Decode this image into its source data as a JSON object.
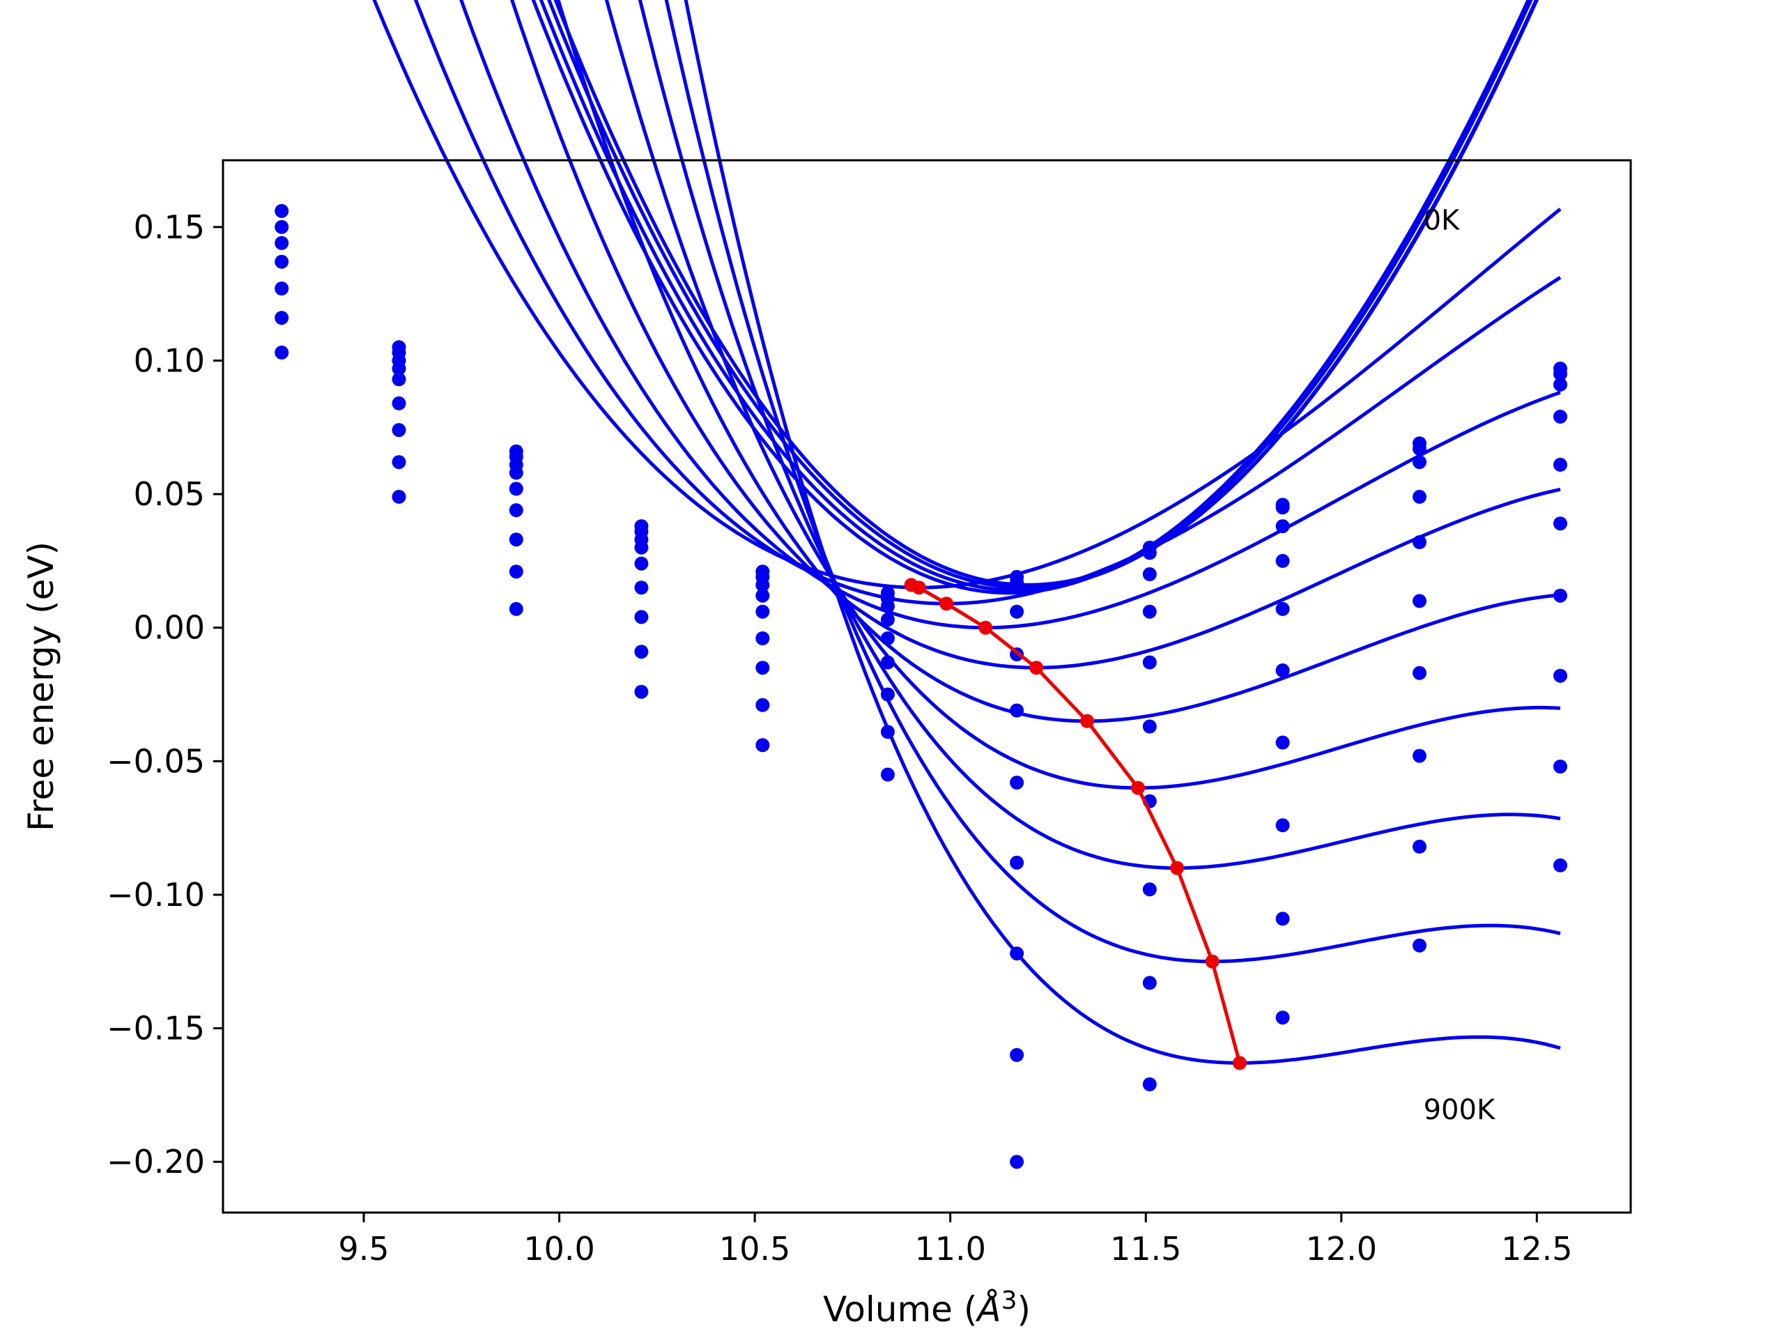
{
  "chart_data": {
    "type": "scatter",
    "title": "",
    "xlabel": "Volume (",
    "xlabel_unit_base": "Å",
    "xlabel_unit_exp": "3",
    "xlabel_close": ")",
    "ylabel": "Free energy (eV)",
    "xlim": [
      9.14,
      12.74
    ],
    "ylim": [
      -0.219,
      0.175
    ],
    "grid": false,
    "x_ticks": [
      {
        "value": 9.5,
        "label": "9.5"
      },
      {
        "value": 10.0,
        "label": "10.0"
      },
      {
        "value": 10.5,
        "label": "10.5"
      },
      {
        "value": 11.0,
        "label": "11.0"
      },
      {
        "value": 11.5,
        "label": "11.5"
      },
      {
        "value": 12.0,
        "label": "12.0"
      },
      {
        "value": 12.5,
        "label": "12.5"
      }
    ],
    "y_ticks": [
      {
        "value": 0.15,
        "label": "0.15"
      },
      {
        "value": 0.1,
        "label": "0.10"
      },
      {
        "value": 0.05,
        "label": "0.05"
      },
      {
        "value": 0.0,
        "label": "0.00"
      },
      {
        "value": -0.05,
        "label": "−0.05"
      },
      {
        "value": -0.1,
        "label": "−0.10"
      },
      {
        "value": -0.15,
        "label": "−0.15"
      },
      {
        "value": -0.2,
        "label": "−0.20"
      }
    ],
    "annotations": [
      {
        "text": "0K",
        "x": 12.21,
        "y": 0.149
      },
      {
        "text": "900K",
        "x": 12.21,
        "y": -0.184
      }
    ],
    "line_color": "#0000ee",
    "min_line_color": "#ee0000",
    "x_samples": [
      9.29,
      9.59,
      9.89,
      10.21,
      10.52,
      10.84,
      11.17,
      11.51,
      11.85,
      12.2,
      12.56
    ],
    "fits": [
      {
        "x_min": 11.2,
        "y_min": 0.016,
        "a": 0.14,
        "b": 0.008,
        "x_start": 9.29,
        "x_end": 12.56
      },
      {
        "x_min": 11.19,
        "y_min": 0.015,
        "a": 0.139,
        "b": 0.008,
        "x_start": 9.29,
        "x_end": 12.56
      },
      {
        "x_min": 11.17,
        "y_min": 0.014,
        "a": 0.139,
        "b": 0.0085,
        "x_start": 9.29,
        "x_end": 12.56
      },
      {
        "x_min": 11.15,
        "y_min": 0.013,
        "a": 0.1385,
        "b": 0.0095,
        "x_start": 9.29,
        "x_end": 12.56
      },
      {
        "x_min": 10.92,
        "y_min": 0.015,
        "a": 0.0855,
        "b": 0.02,
        "x_start": 9.29,
        "x_end": 12.56
      },
      {
        "x_min": 10.99,
        "y_min": 0.009,
        "a": 0.0888,
        "b": 0.025,
        "x_start": 9.29,
        "x_end": 12.56
      },
      {
        "x_min": 11.09,
        "y_min": 0.0,
        "a": 0.0878,
        "b": 0.032,
        "x_start": 9.29,
        "x_end": 12.56
      },
      {
        "x_min": 11.22,
        "y_min": -0.015,
        "a": 0.0881,
        "b": 0.038,
        "x_start": 9.29,
        "x_end": 12.56
      },
      {
        "x_min": 11.35,
        "y_min": -0.035,
        "a": 0.0867,
        "b": 0.045,
        "x_start": 9.29,
        "x_end": 12.56
      },
      {
        "x_min": 11.48,
        "y_min": -0.06,
        "a": 0.085,
        "b": 0.055,
        "x_start": 9.29,
        "x_end": 12.56
      },
      {
        "x_min": 11.58,
        "y_min": -0.09,
        "a": 0.083,
        "b": 0.065,
        "x_start": 9.29,
        "x_end": 12.56
      },
      {
        "x_min": 11.67,
        "y_min": -0.125,
        "a": 0.08,
        "b": 0.075,
        "x_start": 9.29,
        "x_end": 12.56
      },
      {
        "x_min": 11.74,
        "y_min": -0.163,
        "a": 0.078,
        "b": 0.085,
        "x_start": 9.29,
        "x_end": 12.56
      }
    ],
    "points": [
      {
        "x": 9.29,
        "y": 0.156
      },
      {
        "x": 9.29,
        "y": 0.15
      },
      {
        "x": 9.29,
        "y": 0.144
      },
      {
        "x": 9.29,
        "y": 0.137
      },
      {
        "x": 9.29,
        "y": 0.127
      },
      {
        "x": 9.29,
        "y": 0.116
      },
      {
        "x": 9.29,
        "y": 0.103
      },
      {
        "x": 9.59,
        "y": 0.105
      },
      {
        "x": 9.59,
        "y": 0.103
      },
      {
        "x": 9.59,
        "y": 0.1
      },
      {
        "x": 9.59,
        "y": 0.097
      },
      {
        "x": 9.59,
        "y": 0.093
      },
      {
        "x": 9.59,
        "y": 0.084
      },
      {
        "x": 9.59,
        "y": 0.074
      },
      {
        "x": 9.59,
        "y": 0.062
      },
      {
        "x": 9.59,
        "y": 0.049
      },
      {
        "x": 9.89,
        "y": 0.066
      },
      {
        "x": 9.89,
        "y": 0.064
      },
      {
        "x": 9.89,
        "y": 0.061
      },
      {
        "x": 9.89,
        "y": 0.058
      },
      {
        "x": 9.89,
        "y": 0.052
      },
      {
        "x": 9.89,
        "y": 0.044
      },
      {
        "x": 9.89,
        "y": 0.033
      },
      {
        "x": 9.89,
        "y": 0.021
      },
      {
        "x": 9.89,
        "y": 0.007
      },
      {
        "x": 10.21,
        "y": 0.038
      },
      {
        "x": 10.21,
        "y": 0.036
      },
      {
        "x": 10.21,
        "y": 0.033
      },
      {
        "x": 10.21,
        "y": 0.03
      },
      {
        "x": 10.21,
        "y": 0.024
      },
      {
        "x": 10.21,
        "y": 0.015
      },
      {
        "x": 10.21,
        "y": 0.004
      },
      {
        "x": 10.21,
        "y": -0.009
      },
      {
        "x": 10.21,
        "y": -0.024
      },
      {
        "x": 10.52,
        "y": 0.021
      },
      {
        "x": 10.52,
        "y": 0.019
      },
      {
        "x": 10.52,
        "y": 0.016
      },
      {
        "x": 10.52,
        "y": 0.012
      },
      {
        "x": 10.52,
        "y": 0.006
      },
      {
        "x": 10.52,
        "y": -0.004
      },
      {
        "x": 10.52,
        "y": -0.015
      },
      {
        "x": 10.52,
        "y": -0.029
      },
      {
        "x": 10.52,
        "y": -0.044
      },
      {
        "x": 10.84,
        "y": 0.013
      },
      {
        "x": 10.84,
        "y": 0.011
      },
      {
        "x": 10.84,
        "y": 0.008
      },
      {
        "x": 10.84,
        "y": 0.003
      },
      {
        "x": 10.84,
        "y": -0.004
      },
      {
        "x": 10.84,
        "y": -0.013
      },
      {
        "x": 10.84,
        "y": -0.025
      },
      {
        "x": 10.84,
        "y": -0.039
      },
      {
        "x": 10.84,
        "y": -0.055
      },
      {
        "x": 11.17,
        "y": 0.019
      },
      {
        "x": 11.17,
        "y": 0.017
      },
      {
        "x": 11.17,
        "y": 0.006
      },
      {
        "x": 11.17,
        "y": -0.01
      },
      {
        "x": 11.17,
        "y": -0.031
      },
      {
        "x": 11.17,
        "y": -0.058
      },
      {
        "x": 11.17,
        "y": -0.088
      },
      {
        "x": 11.17,
        "y": -0.122
      },
      {
        "x": 11.17,
        "y": -0.16
      },
      {
        "x": 11.17,
        "y": -0.2
      },
      {
        "x": 11.51,
        "y": 0.03
      },
      {
        "x": 11.51,
        "y": 0.028
      },
      {
        "x": 11.51,
        "y": 0.02
      },
      {
        "x": 11.51,
        "y": 0.006
      },
      {
        "x": 11.51,
        "y": -0.013
      },
      {
        "x": 11.51,
        "y": -0.037
      },
      {
        "x": 11.51,
        "y": -0.065
      },
      {
        "x": 11.51,
        "y": -0.098
      },
      {
        "x": 11.51,
        "y": -0.133
      },
      {
        "x": 11.51,
        "y": -0.171
      },
      {
        "x": 11.85,
        "y": 0.046
      },
      {
        "x": 11.85,
        "y": 0.045
      },
      {
        "x": 11.85,
        "y": 0.038
      },
      {
        "x": 11.85,
        "y": 0.025
      },
      {
        "x": 11.85,
        "y": 0.007
      },
      {
        "x": 11.85,
        "y": -0.016
      },
      {
        "x": 11.85,
        "y": -0.043
      },
      {
        "x": 11.85,
        "y": -0.074
      },
      {
        "x": 11.85,
        "y": -0.109
      },
      {
        "x": 11.85,
        "y": -0.146
      },
      {
        "x": 12.2,
        "y": 0.069
      },
      {
        "x": 12.2,
        "y": 0.067
      },
      {
        "x": 12.2,
        "y": 0.062
      },
      {
        "x": 12.2,
        "y": 0.049
      },
      {
        "x": 12.2,
        "y": 0.032
      },
      {
        "x": 12.2,
        "y": 0.01
      },
      {
        "x": 12.2,
        "y": -0.017
      },
      {
        "x": 12.2,
        "y": -0.048
      },
      {
        "x": 12.2,
        "y": -0.082
      },
      {
        "x": 12.2,
        "y": -0.119
      },
      {
        "x": 12.56,
        "y": 0.097
      },
      {
        "x": 12.56,
        "y": 0.095
      },
      {
        "x": 12.56,
        "y": 0.091
      },
      {
        "x": 12.56,
        "y": 0.079
      },
      {
        "x": 12.56,
        "y": 0.061
      },
      {
        "x": 12.56,
        "y": 0.039
      },
      {
        "x": 12.56,
        "y": 0.012
      },
      {
        "x": 12.56,
        "y": -0.018
      },
      {
        "x": 12.56,
        "y": -0.052
      },
      {
        "x": 12.56,
        "y": -0.089
      }
    ],
    "min_points": [
      {
        "x": 10.9,
        "y": 0.016
      },
      {
        "x": 10.92,
        "y": 0.015
      },
      {
        "x": 10.99,
        "y": 0.009
      },
      {
        "x": 11.09,
        "y": 0.0
      },
      {
        "x": 11.22,
        "y": -0.015
      },
      {
        "x": 11.35,
        "y": -0.035
      },
      {
        "x": 11.48,
        "y": -0.06
      },
      {
        "x": 11.58,
        "y": -0.09
      },
      {
        "x": 11.67,
        "y": -0.125
      },
      {
        "x": 11.74,
        "y": -0.163
      }
    ]
  }
}
